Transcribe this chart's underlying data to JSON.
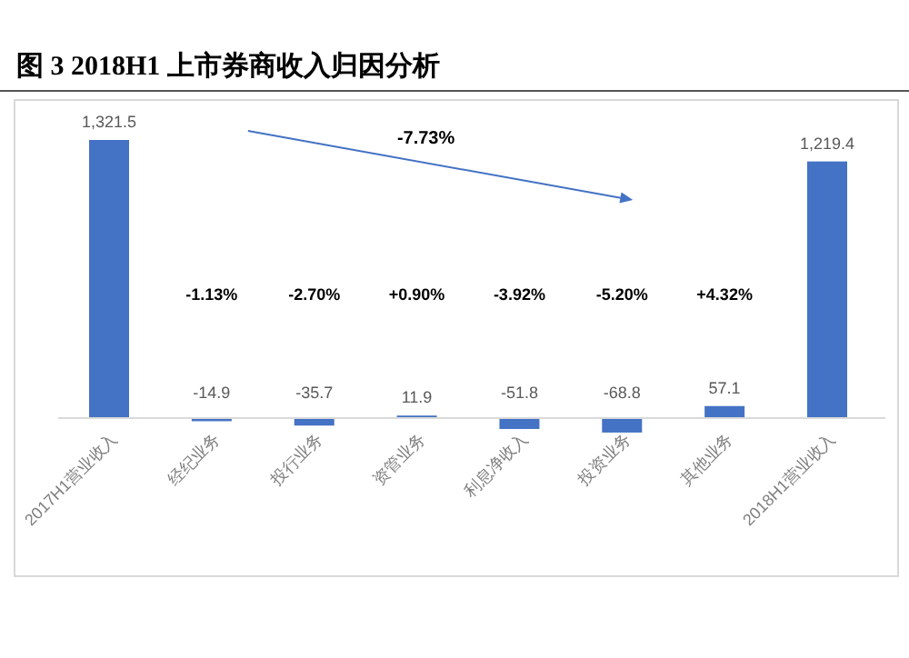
{
  "chart_data": {
    "type": "bar",
    "title": "图 3 2018H1 上市券商收入归因分析",
    "categories": [
      "2017H1营业收入",
      "经纪业务",
      "投行业务",
      "资管业务",
      "利息净收入",
      "投资业务",
      "其他业务",
      "2018H1营业收入"
    ],
    "values": [
      1321.5,
      -14.9,
      -35.7,
      11.9,
      -51.8,
      -68.8,
      57.1,
      1219.4
    ],
    "value_labels": [
      "1,321.5",
      "-14.9",
      "-35.7",
      "11.9",
      "-51.8",
      "-68.8",
      "57.1",
      "1,219.4"
    ],
    "color": "#4472c4",
    "annotations": [
      "-7.73%",
      "-1.13%",
      "-2.70%",
      "+0.90%",
      "-3.92%",
      "-5.20%",
      "+4.32%"
    ]
  }
}
